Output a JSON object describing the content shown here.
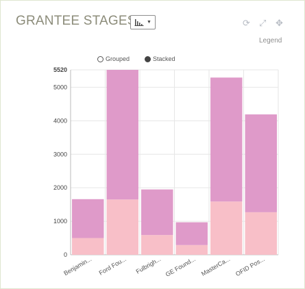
{
  "widget": {
    "title": "GRANTEE STAGES",
    "chart_type_icon": "bar-chart-icon",
    "tools": [
      "refresh-icon",
      "expand-icon",
      "move-icon"
    ],
    "legend_label": "Legend",
    "mode_grouped_label": "Grouped",
    "mode_stacked_label": "Stacked",
    "selected_mode": "Stacked"
  },
  "colors": {
    "series_lower": "#f8bfc8",
    "series_upper": "#df9ac9",
    "grid": "#e6e6e6"
  },
  "chart_data": {
    "type": "bar",
    "stacked": true,
    "categories": [
      "Benjamin...",
      "Ford Fou...",
      "Fulbrigh...",
      "GE Found...",
      "MasterCa...",
      "OFID Pos..."
    ],
    "series": [
      {
        "values": [
          500,
          1650,
          590,
          290,
          1590,
          1270
        ]
      },
      {
        "values": [
          1160,
          3870,
          1360,
          680,
          3700,
          2920
        ]
      }
    ],
    "ylim": [
      0,
      5520
    ],
    "yticks": [
      "0",
      "1000",
      "2000",
      "3000",
      "4000",
      "5000",
      "5520"
    ],
    "grid": true
  }
}
